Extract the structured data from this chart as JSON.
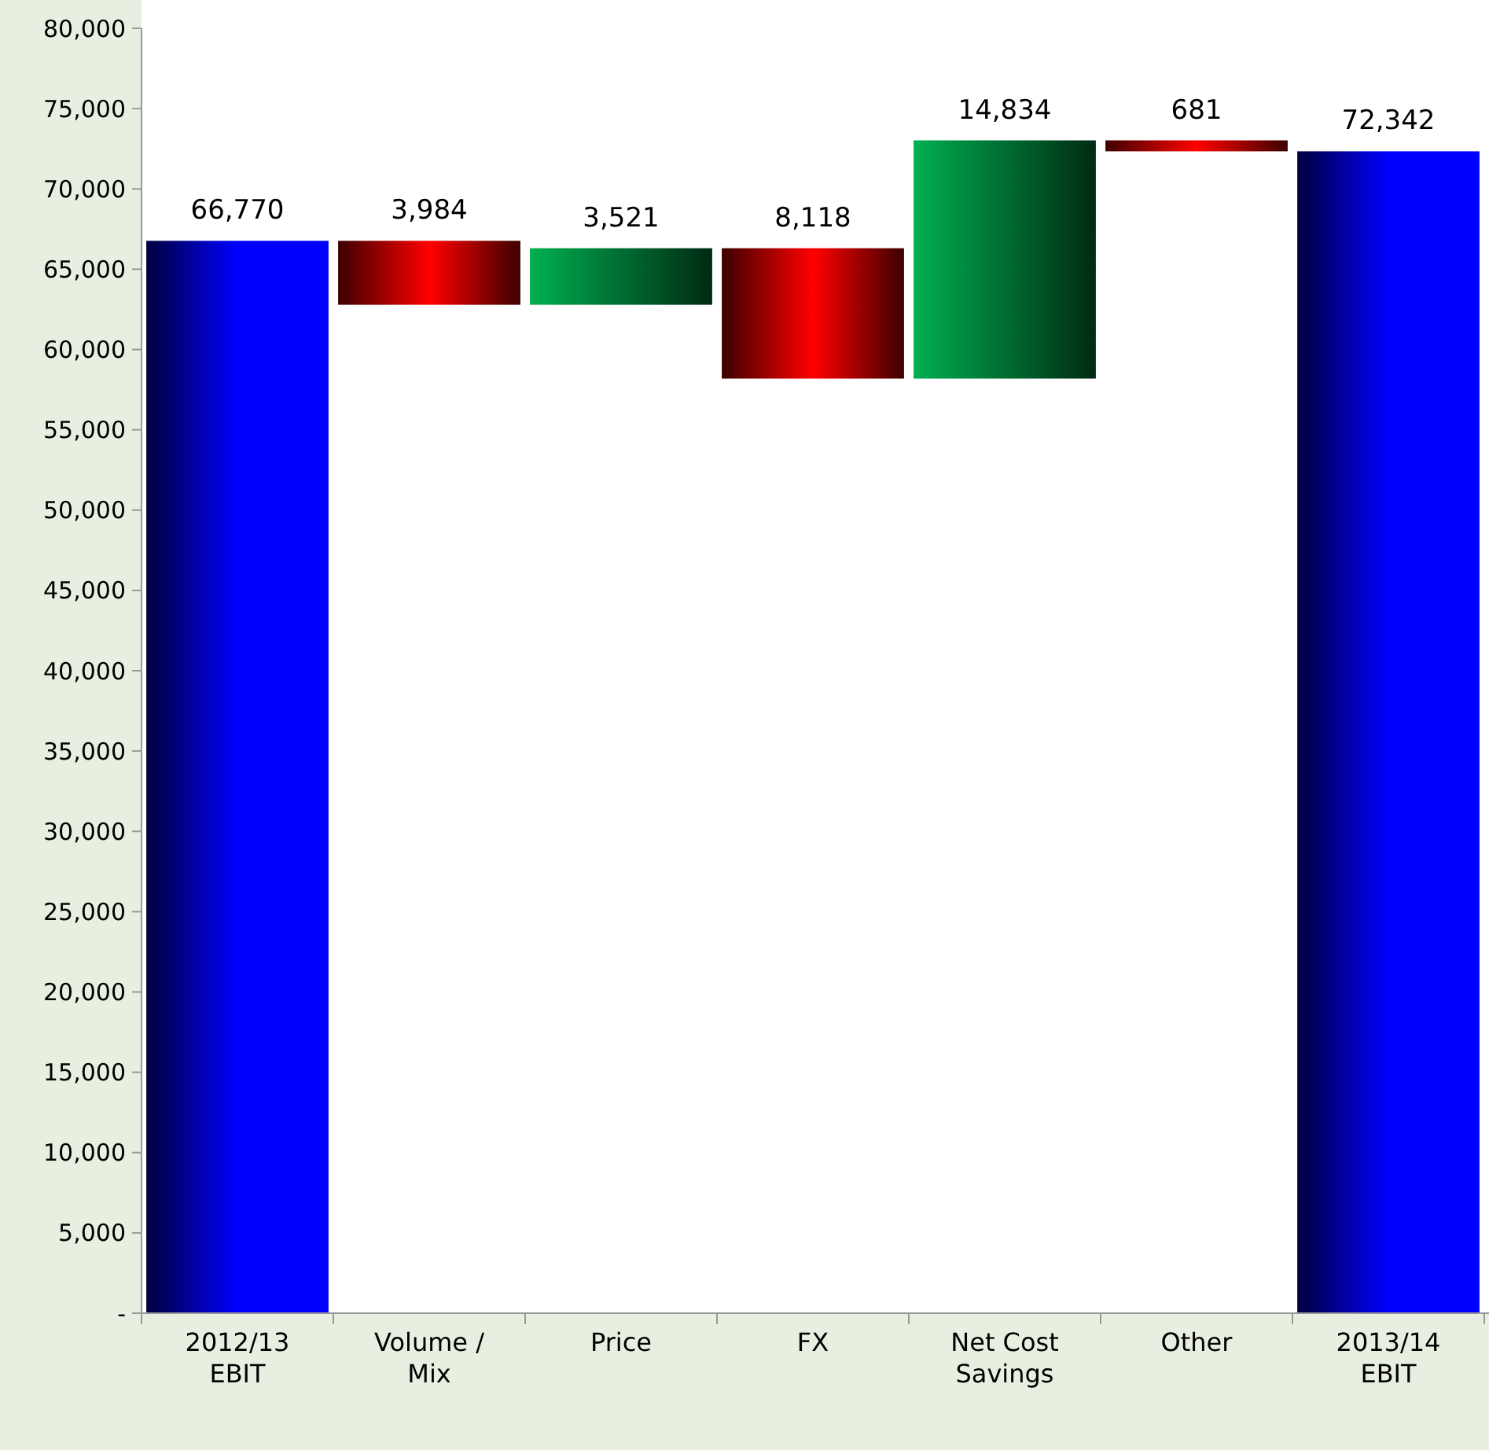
{
  "chart_data": {
    "type": "bar",
    "categories": [
      "2012/13\nEBIT",
      "Volume /\nMix",
      "Price",
      "FX",
      "Net Cost\nSavings",
      "Other",
      "2013/14\nEBIT"
    ],
    "values": [
      66770,
      3984,
      3521,
      8118,
      14834,
      681,
      72342
    ],
    "base": [
      0,
      62786,
      62786,
      58189,
      58189,
      72342,
      0
    ],
    "colors": [
      "#0000ff",
      "#ff0000",
      "#00b050",
      "#ff0000",
      "#00b050",
      "#ff0000",
      "#0000ff"
    ],
    "value_labels": [
      "66,770",
      "3,984",
      "3,521",
      "8,118",
      "14,834",
      "681",
      "72,342"
    ],
    "ylim": [
      0,
      80000
    ],
    "yticks": [
      {
        "value": 0,
        "label": "-"
      },
      {
        "value": 5000,
        "label": "5,000"
      },
      {
        "value": 10000,
        "label": "10,000"
      },
      {
        "value": 15000,
        "label": "15,000"
      },
      {
        "value": 20000,
        "label": "20,000"
      },
      {
        "value": 25000,
        "label": "25,000"
      },
      {
        "value": 30000,
        "label": "30,000"
      },
      {
        "value": 35000,
        "label": "35,000"
      },
      {
        "value": 40000,
        "label": "40,000"
      },
      {
        "value": 45000,
        "label": "45,000"
      },
      {
        "value": 50000,
        "label": "50,000"
      },
      {
        "value": 55000,
        "label": "55,000"
      },
      {
        "value": 60000,
        "label": "60,000"
      },
      {
        "value": 65000,
        "label": "65,000"
      },
      {
        "value": 70000,
        "label": "70,000"
      },
      {
        "value": 75000,
        "label": "75,000"
      },
      {
        "value": 80000,
        "label": "80,000"
      }
    ],
    "grid": false
  }
}
